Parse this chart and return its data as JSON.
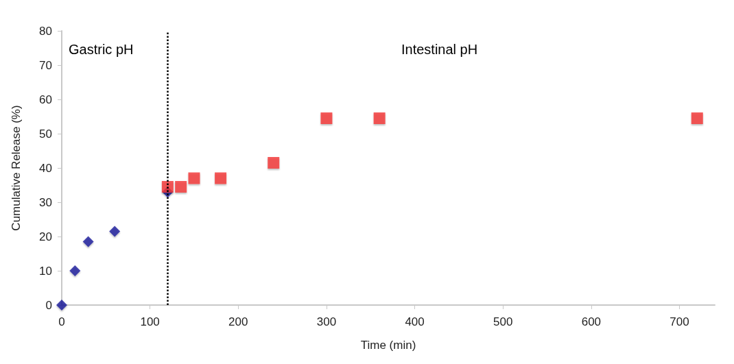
{
  "chart_data": {
    "type": "scatter",
    "xlabel": "Time (min)",
    "ylabel": "Cumulative Release (%)",
    "series": [
      {
        "color": "#16169a",
        "marker": "diamond",
        "x": [
          0,
          15,
          30,
          60,
          120
        ],
        "values": [
          0,
          10,
          18.5,
          21.5,
          33
        ]
      },
      {
        "color": "#f23434",
        "marker": "square",
        "x": [
          120,
          135,
          150,
          180,
          240,
          300,
          360,
          720
        ],
        "values": [
          34.5,
          34.5,
          37,
          37,
          41.5,
          54.5,
          54.5,
          54.5
        ]
      }
    ],
    "xlim": [
      0,
      740
    ],
    "xticks": [
      0,
      100,
      200,
      300,
      400,
      500,
      600,
      700
    ],
    "ylim": [
      0,
      80
    ],
    "yticks": [
      0,
      10,
      20,
      30,
      40,
      50,
      60,
      70,
      80
    ],
    "grid": false,
    "ref_lines": [
      {
        "axis": "x",
        "value": 120,
        "color": "#000000",
        "line_style": "dotted"
      }
    ],
    "annotations": [
      "Gastric pH",
      "Intestinal pH"
    ]
  }
}
